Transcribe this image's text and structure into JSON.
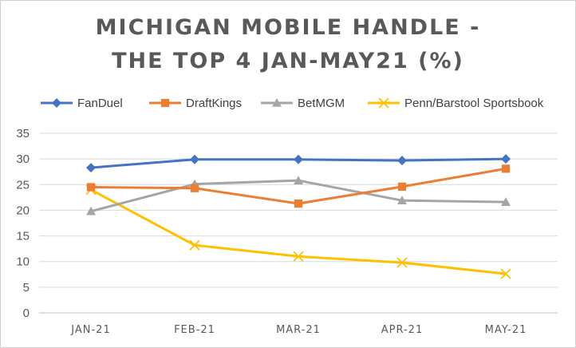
{
  "chart_data": {
    "type": "line",
    "title_lines": [
      "MICHIGAN MOBILE HANDLE -",
      "THE TOP 4 JAN-MAY21 (%)"
    ],
    "xlabel": "",
    "ylabel": "",
    "categories": [
      "JAN-21",
      "FEB-21",
      "MAR-21",
      "APR-21",
      "MAY-21"
    ],
    "ylim": [
      0,
      35
    ],
    "yticks": [
      0,
      5,
      10,
      15,
      20,
      25,
      30,
      35
    ],
    "grid": "horizontal",
    "legend": "top",
    "series": [
      {
        "name": "FanDuel",
        "values": [
          28.3,
          29.9,
          29.9,
          29.7,
          30.0
        ],
        "color": "#4472C4",
        "marker": "diamond"
      },
      {
        "name": "DraftKings",
        "values": [
          24.5,
          24.3,
          21.3,
          24.6,
          28.1
        ],
        "color": "#ED7D31",
        "marker": "square"
      },
      {
        "name": "BetMGM",
        "values": [
          19.8,
          25.1,
          25.8,
          21.9,
          21.6
        ],
        "color": "#A5A5A5",
        "marker": "triangle"
      },
      {
        "name": "Penn/Barstool Sportsbook",
        "values": [
          24.0,
          13.2,
          11.0,
          9.8,
          7.6
        ],
        "color": "#FFC000",
        "marker": "x"
      }
    ]
  }
}
